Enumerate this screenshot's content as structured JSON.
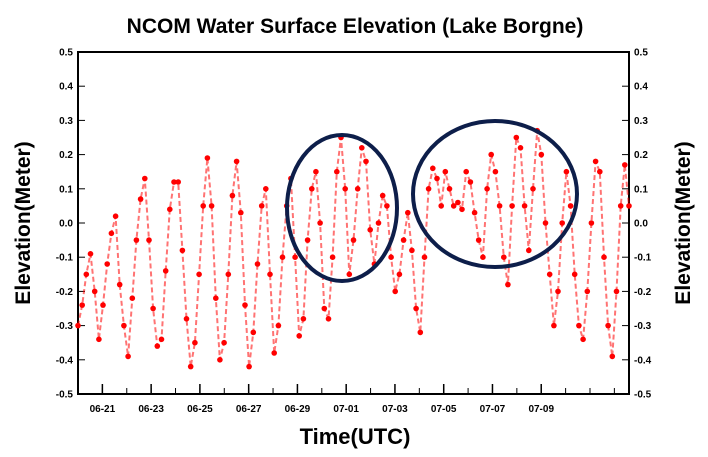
{
  "chart_data": {
    "type": "line",
    "title": "NCOM Water Surface Elevation (Lake Borgne)",
    "xlabel": "Time(UTC)",
    "ylabel_left": "Elevation(Meter)",
    "ylabel_right": "Elevation(Meter)",
    "ylim": [
      -0.5,
      0.5
    ],
    "yticks": [
      "0.5",
      "0.4",
      "0.3",
      "0.2",
      "0.1",
      "0.0",
      "-0.1",
      "-0.2",
      "-0.3",
      "-0.4",
      "-0.5"
    ],
    "xlim_days": [
      0,
      22.6
    ],
    "xticks": [
      "06-21",
      "06-23",
      "06-25",
      "06-27",
      "06-29",
      "07-01",
      "07-03",
      "07-05",
      "07-07",
      "07-09"
    ],
    "series_color": "#ff0000",
    "series_peaks": [
      [
        -0.3,
        -0.24,
        -0.15,
        -0.09,
        -0.2,
        -0.34,
        -0.24,
        -0.12,
        -0.03,
        0.02,
        -0.18,
        -0.3,
        -0.39,
        -0.22,
        -0.05,
        0.07,
        0.13,
        -0.05,
        -0.25,
        -0.36,
        -0.34,
        -0.14,
        0.04,
        0.12,
        0.12,
        -0.08,
        -0.28,
        -0.42,
        -0.35,
        -0.15,
        0.05,
        0.19,
        0.05,
        -0.22,
        -0.4,
        -0.35,
        -0.15,
        0.08,
        0.18,
        0.03,
        -0.24,
        -0.42,
        -0.32,
        -0.12,
        0.05,
        0.1,
        -0.15,
        -0.38,
        -0.3,
        -0.1,
        0.05,
        0.13,
        -0.1,
        -0.33,
        -0.28,
        -0.05,
        0.1,
        0.15,
        0.0,
        -0.25,
        -0.28,
        -0.1,
        0.15,
        0.25,
        0.1,
        -0.15,
        -0.05,
        0.1,
        0.22,
        0.18,
        -0.02,
        -0.12,
        0.0,
        0.08,
        0.05,
        -0.1,
        -0.2,
        -0.15,
        -0.05,
        0.03,
        -0.08,
        -0.25,
        -0.32,
        -0.1,
        0.1,
        0.16,
        0.13,
        0.05,
        0.15,
        0.1,
        0.05,
        0.06,
        0.04,
        0.15,
        0.12,
        0.03,
        -0.05,
        -0.1,
        0.1,
        0.2,
        0.15,
        0.05,
        -0.1,
        -0.18,
        0.05,
        0.25,
        0.22,
        0.05,
        -0.08,
        0.1,
        0.27,
        0.2,
        0.0,
        -0.15,
        -0.3,
        -0.2,
        0.0,
        0.15,
        0.05,
        -0.15,
        -0.3,
        -0.34,
        -0.2,
        0.0,
        0.18,
        0.15,
        -0.1,
        -0.3,
        -0.39,
        -0.2,
        0.05,
        0.17,
        0.05
      ]
    ],
    "annotations": [
      {
        "type": "ellipse",
        "color": "#0d1e4a"
      },
      {
        "type": "ellipse",
        "color": "#0d1e4a"
      }
    ]
  }
}
